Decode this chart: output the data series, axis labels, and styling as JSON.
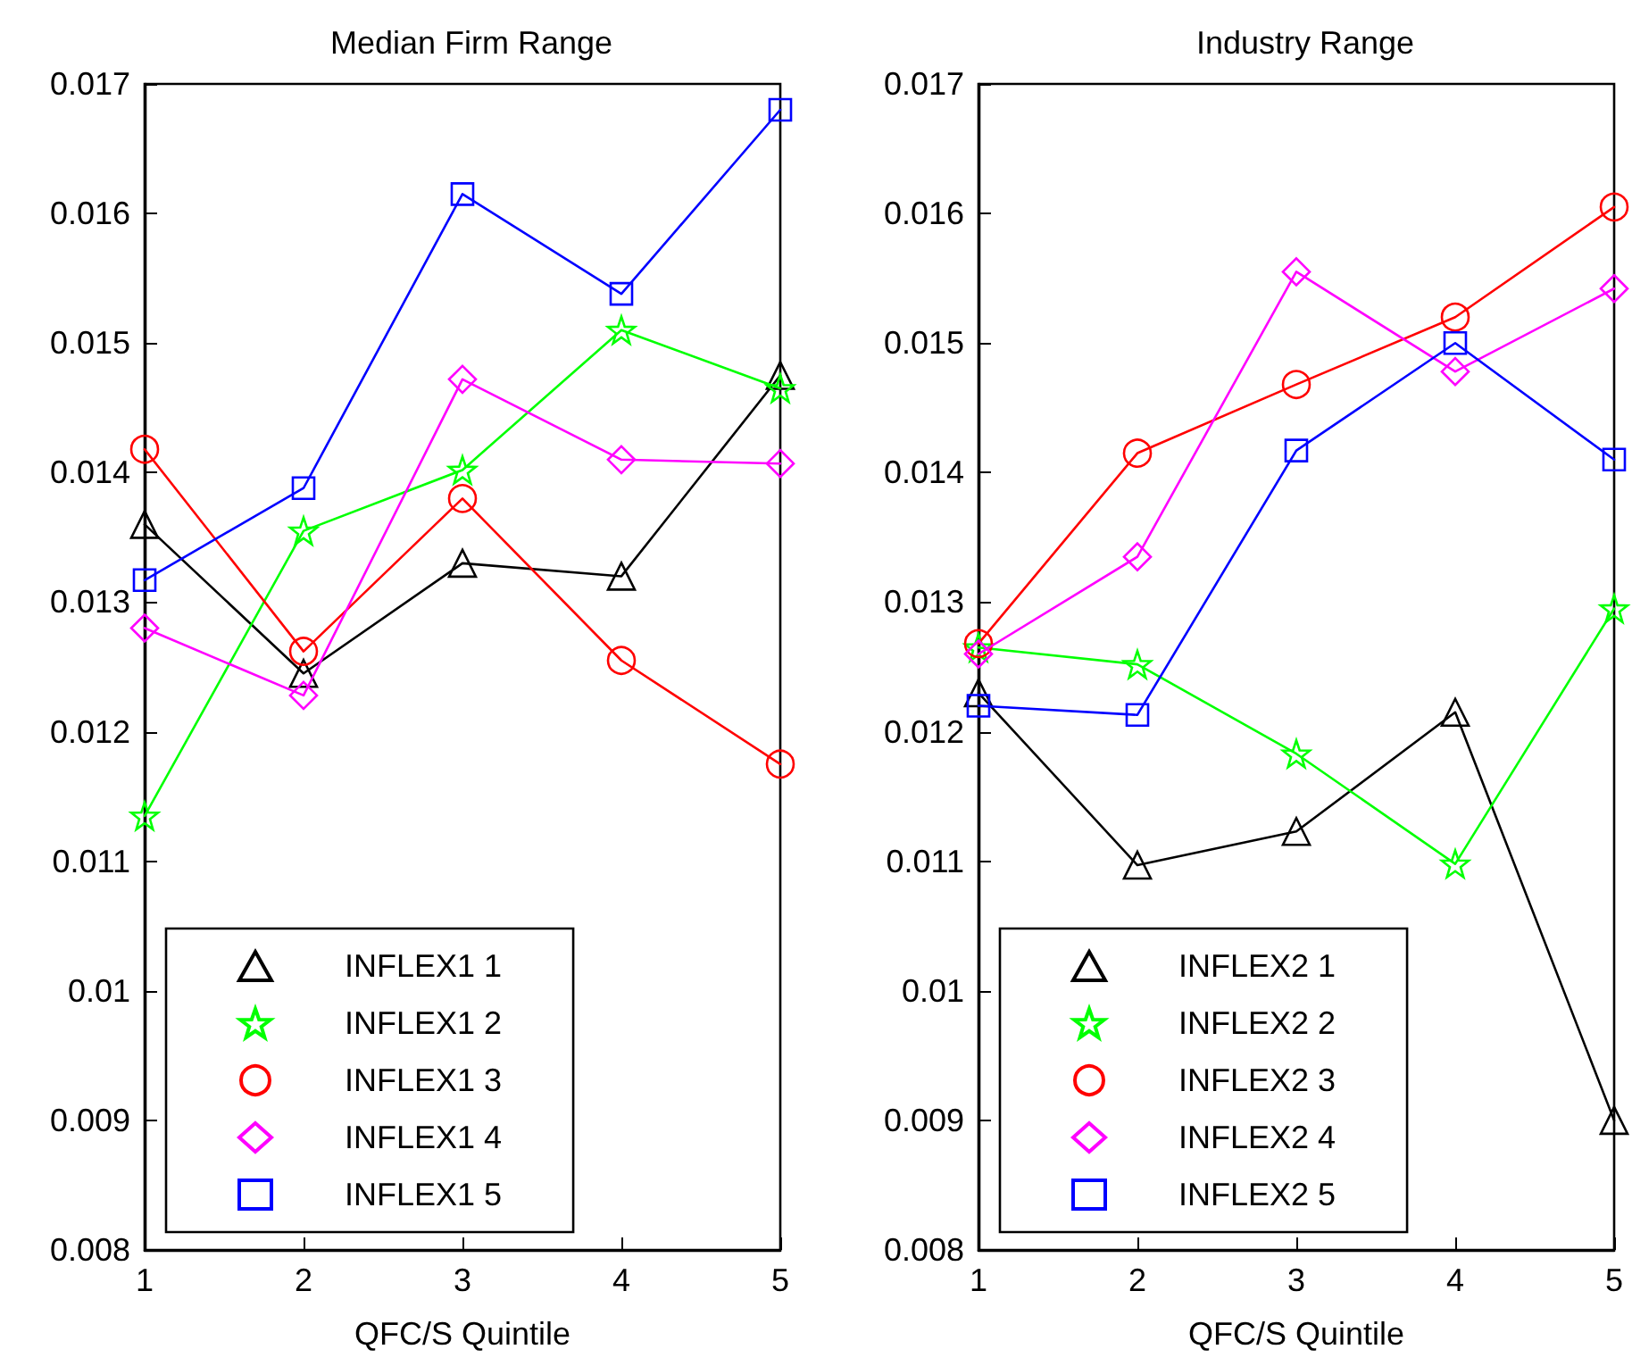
{
  "chart_data": [
    {
      "type": "line",
      "title": "Median Firm Range",
      "xlabel": "QFC/S Quintile",
      "x": [
        1,
        2,
        3,
        4,
        5
      ],
      "xlim": [
        1,
        5
      ],
      "xticks": [
        1,
        2,
        3,
        4,
        5
      ],
      "ylim": [
        0.008,
        0.017
      ],
      "yticks": [
        0.008,
        0.009,
        0.01,
        0.011,
        0.012,
        0.013,
        0.014,
        0.015,
        0.016,
        0.017
      ],
      "grid": false,
      "legend": "bottom left",
      "line_style": "solid",
      "series": [
        {
          "name": "INFLEX1 1",
          "color": "#000000",
          "marker": "triangle",
          "values": [
            0.0136,
            0.01245,
            0.0133,
            0.0132,
            0.01475
          ]
        },
        {
          "name": "INFLEX1 2",
          "color": "#00ff00",
          "marker": "star",
          "values": [
            0.01135,
            0.01355,
            0.01402,
            0.0151,
            0.01465
          ]
        },
        {
          "name": "INFLEX1 3",
          "color": "#ff0000",
          "marker": "circle",
          "values": [
            0.01418,
            0.01262,
            0.0138,
            0.01255,
            0.01175
          ]
        },
        {
          "name": "INFLEX1 4",
          "color": "#ff00ff",
          "marker": "diamond",
          "values": [
            0.0128,
            0.01228,
            0.01472,
            0.0141,
            0.01407
          ]
        },
        {
          "name": "INFLEX1 5",
          "color": "#0000ff",
          "marker": "square",
          "values": [
            0.01317,
            0.01388,
            0.01615,
            0.01538,
            0.0168
          ]
        }
      ]
    },
    {
      "type": "line",
      "title": "Industry Range",
      "xlabel": "QFC/S Quintile",
      "x": [
        1,
        2,
        3,
        4,
        5
      ],
      "xlim": [
        1,
        5
      ],
      "xticks": [
        1,
        2,
        3,
        4,
        5
      ],
      "ylim": [
        0.008,
        0.017
      ],
      "yticks": [
        0.008,
        0.009,
        0.01,
        0.011,
        0.012,
        0.013,
        0.014,
        0.015,
        0.016,
        0.017
      ],
      "grid": false,
      "legend": "bottom left",
      "line_style": "solid",
      "series": [
        {
          "name": "INFLEX2 1",
          "color": "#000000",
          "marker": "triangle",
          "values": [
            0.0123,
            0.01097,
            0.01123,
            0.01215,
            0.009
          ]
        },
        {
          "name": "INFLEX2 2",
          "color": "#00ff00",
          "marker": "star",
          "values": [
            0.01265,
            0.01252,
            0.01183,
            0.01098,
            0.01295
          ]
        },
        {
          "name": "INFLEX2 3",
          "color": "#ff0000",
          "marker": "circle",
          "values": [
            0.01268,
            0.01415,
            0.01468,
            0.0152,
            0.01605
          ]
        },
        {
          "name": "INFLEX2 4",
          "color": "#ff00ff",
          "marker": "diamond",
          "values": [
            0.0126,
            0.01335,
            0.01555,
            0.01478,
            0.01542
          ]
        },
        {
          "name": "INFLEX2 5",
          "color": "#0000ff",
          "marker": "square",
          "values": [
            0.0122,
            0.01213,
            0.01417,
            0.015,
            0.0141
          ]
        }
      ]
    }
  ]
}
